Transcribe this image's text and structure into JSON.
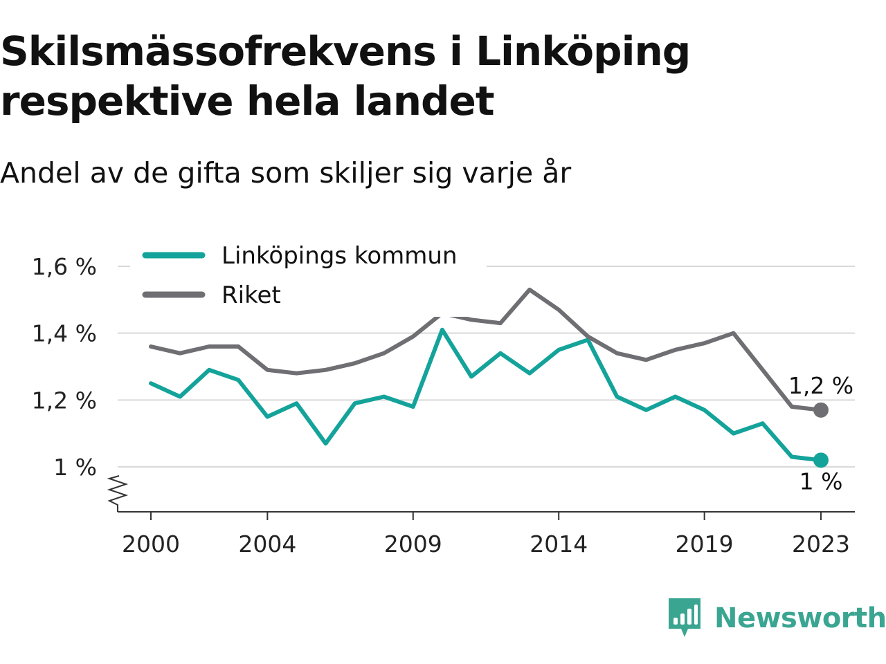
{
  "header": {
    "title": "Skilsmässofrekvens i Linköping respektive hela landet",
    "subtitle": "Andel av de gifta som skiljer sig varje år"
  },
  "brand": {
    "name": "Newsworthy",
    "icon": "newsworthy-logo-icon",
    "color": "#3aa591"
  },
  "chart_data": {
    "type": "line",
    "x": [
      2000,
      2001,
      2002,
      2003,
      2004,
      2005,
      2006,
      2007,
      2008,
      2009,
      2010,
      2011,
      2012,
      2013,
      2014,
      2015,
      2016,
      2017,
      2018,
      2019,
      2020,
      2021,
      2022,
      2023
    ],
    "x_ticks": [
      2000,
      2004,
      2009,
      2014,
      2019,
      2023
    ],
    "x_tick_labels": [
      "2000",
      "2004",
      "2009",
      "2014",
      "2019",
      "2023"
    ],
    "ylim": [
      0.87,
      1.6
    ],
    "y_ticks": [
      1.0,
      1.2,
      1.4,
      1.6
    ],
    "y_tick_labels": [
      "1 %",
      "1,2 %",
      "1,4 %",
      "1,6 %"
    ],
    "axis_break": true,
    "grid": true,
    "legend_position": "top-left",
    "series": [
      {
        "name": "Linköpings kommun",
        "color": "#14a39a",
        "values": [
          1.25,
          1.21,
          1.29,
          1.26,
          1.15,
          1.19,
          1.07,
          1.19,
          1.21,
          1.18,
          1.41,
          1.27,
          1.34,
          1.28,
          1.35,
          1.38,
          1.21,
          1.17,
          1.21,
          1.17,
          1.1,
          1.13,
          1.03,
          1.02
        ],
        "end_label": "1 %"
      },
      {
        "name": "Riket",
        "color": "#6e6e73",
        "values": [
          1.36,
          1.34,
          1.36,
          1.36,
          1.29,
          1.28,
          1.29,
          1.31,
          1.34,
          1.39,
          1.46,
          1.44,
          1.43,
          1.53,
          1.47,
          1.39,
          1.34,
          1.32,
          1.35,
          1.37,
          1.4,
          1.29,
          1.18,
          1.17
        ],
        "end_label": "1,2 %"
      }
    ]
  }
}
